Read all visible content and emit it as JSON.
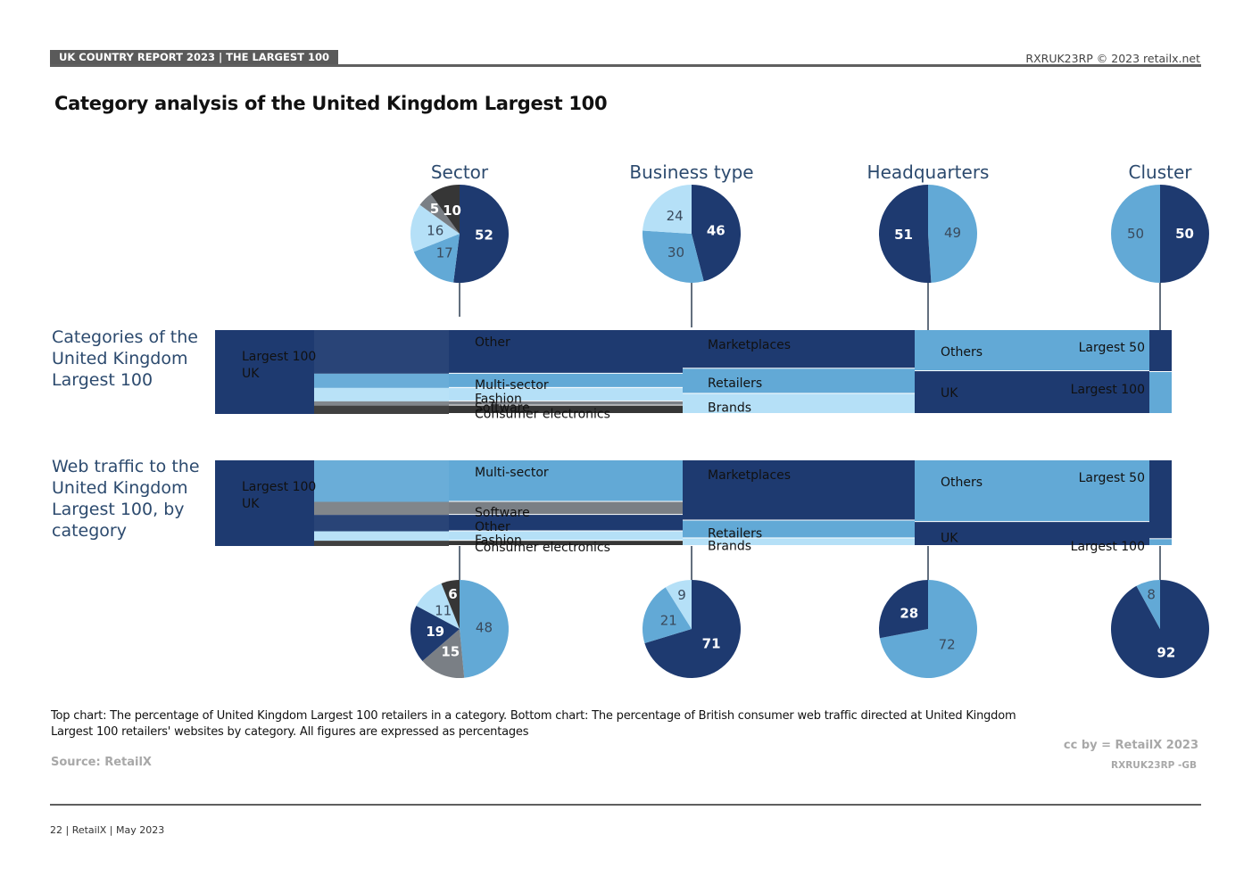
{
  "header": {
    "badge": "UK COUNTRY REPORT 2023 | THE LARGEST 100",
    "right": "RXRUK23RP © 2023 retailx.net"
  },
  "title": "Category analysis of the United Kingdom Largest 100",
  "rows": {
    "top_label": "Categories of the United Kingdom Largest 100",
    "bottom_label": "Web traffic to the United Kingdom Largest 100, by category"
  },
  "colors": {
    "navy": "#1e3a70",
    "mid": "#62a9d6",
    "light": "#b5e0f7",
    "dark": "#363636",
    "gray": "#7a7f85"
  },
  "chart_data": {
    "type": "sankey_with_pies",
    "columns": [
      "Sector",
      "Business type",
      "Headquarters",
      "Cluster"
    ],
    "source_labels": [
      "Largest 100",
      "UK"
    ],
    "top": {
      "sector": [
        {
          "label": "Other",
          "value": 52,
          "color": "#1e3a70"
        },
        {
          "label": "Multi-sector",
          "value": 17,
          "color": "#62a9d6"
        },
        {
          "label": "Fashion",
          "value": 16,
          "color": "#b5e0f7"
        },
        {
          "label": "Software",
          "value": 5,
          "color": "#7a7f85"
        },
        {
          "label": "Consumer electronics",
          "value": 10,
          "color": "#363636"
        }
      ],
      "business_type": [
        {
          "label": "Marketplaces",
          "value": 46,
          "color": "#1e3a70"
        },
        {
          "label": "Retailers",
          "value": 30,
          "color": "#62a9d6"
        },
        {
          "label": "Brands",
          "value": 24,
          "color": "#b5e0f7"
        }
      ],
      "headquarters": [
        {
          "label": "Others",
          "value": 49,
          "color": "#62a9d6"
        },
        {
          "label": "UK",
          "value": 51,
          "color": "#1e3a70"
        }
      ],
      "cluster": [
        {
          "label": "Largest 50",
          "value": 50,
          "color": "#1e3a70"
        },
        {
          "label": "Largest 100",
          "value": 50,
          "color": "#62a9d6"
        }
      ]
    },
    "bottom": {
      "sector": [
        {
          "label": "Multi-sector",
          "value": 48,
          "color": "#62a9d6"
        },
        {
          "label": "Software",
          "value": 15,
          "color": "#7a7f85"
        },
        {
          "label": "Other",
          "value": 19,
          "color": "#1e3a70"
        },
        {
          "label": "Fashion",
          "value": 11,
          "color": "#b5e0f7"
        },
        {
          "label": "Consumer electronics",
          "value": 6,
          "color": "#363636"
        }
      ],
      "business_type": [
        {
          "label": "Marketplaces",
          "value": 71,
          "color": "#1e3a70"
        },
        {
          "label": "Retailers",
          "value": 21,
          "color": "#62a9d6"
        },
        {
          "label": "Brands",
          "value": 9,
          "color": "#b5e0f7"
        }
      ],
      "headquarters": [
        {
          "label": "Others",
          "value": 72,
          "color": "#62a9d6"
        },
        {
          "label": "UK",
          "value": 28,
          "color": "#1e3a70"
        }
      ],
      "cluster": [
        {
          "label": "Largest 50",
          "value": 92,
          "color": "#1e3a70"
        },
        {
          "label": "Largest 100",
          "value": 8,
          "color": "#62a9d6"
        }
      ]
    }
  },
  "caption": "Top chart: The percentage of United Kingdom Largest 100 retailers in a category. Bottom chart: The percentage of British consumer web traffic directed at United Kingdom Largest 100 retailers' websites by category. All figures are expressed as percentages",
  "source": "Source: RetailX",
  "credit": {
    "cc": "cc by = RetailX 2023",
    "code": "RXRUK23RP -GB"
  },
  "footer": "22 | RetailX | May 2023"
}
